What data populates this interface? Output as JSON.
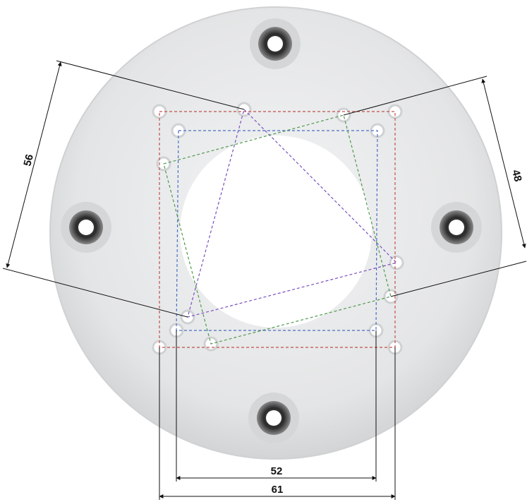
{
  "plate": {
    "color": "#e6e7e8",
    "shadow_color": "#c9cbcd",
    "center_hole_color": "#ffffff",
    "fastener_color": "#2a2a2a"
  },
  "patterns": [
    {
      "name": "square-61",
      "color": "#c0504d"
    },
    {
      "name": "square-52",
      "color": "#4a6fc4"
    },
    {
      "name": "square-56",
      "color": "#7a4fbf"
    },
    {
      "name": "square-48",
      "color": "#4e9a4e"
    }
  ],
  "dimensions": {
    "d61": "61",
    "d52": "52",
    "d56": "56",
    "d48": "48"
  }
}
